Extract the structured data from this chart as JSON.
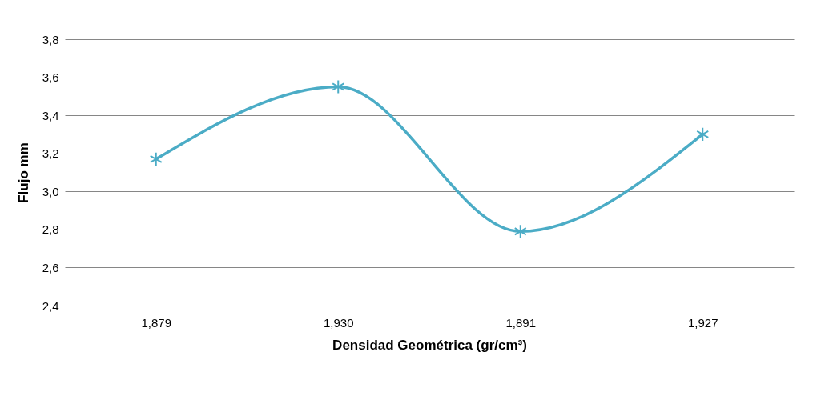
{
  "chart_data": {
    "type": "line",
    "xlabel": "Densidad Geométrica (gr/cm³)",
    "ylabel": "Flujo mm",
    "categories": [
      "1,879",
      "1,930",
      "1,891",
      "1,927"
    ],
    "series": [
      {
        "color": "#4bacc6",
        "values": [
          3.17,
          3.55,
          2.79,
          3.3
        ]
      }
    ],
    "ylim": [
      2.4,
      3.8
    ],
    "yticks": [
      {
        "value": 2.4,
        "label": "2,4"
      },
      {
        "value": 2.6,
        "label": "2,6"
      },
      {
        "value": 2.8,
        "label": "2,8"
      },
      {
        "value": 3.0,
        "label": "3,0"
      },
      {
        "value": 3.2,
        "label": "3,2"
      },
      {
        "value": 3.4,
        "label": "3,4"
      },
      {
        "value": 3.6,
        "label": "3,6"
      },
      {
        "value": 3.8,
        "label": "3,8"
      }
    ],
    "grid": "y",
    "marker": "cross",
    "line_style": "solid"
  }
}
